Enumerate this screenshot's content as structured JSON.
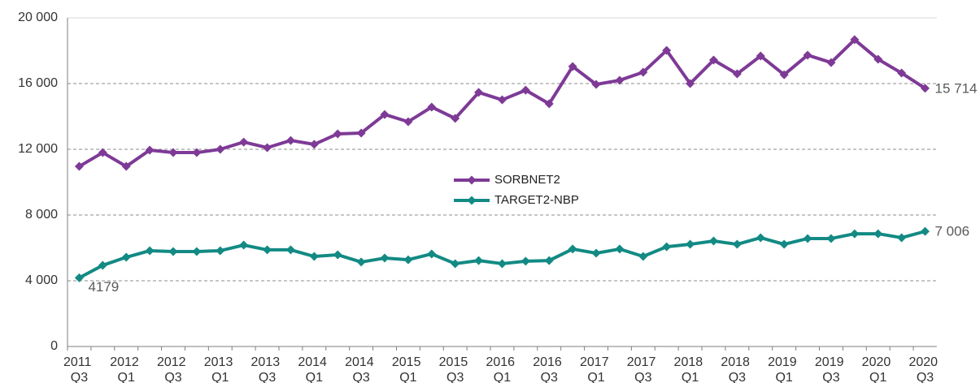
{
  "chart_data": {
    "type": "line",
    "categories": [
      "2011 Q3",
      null,
      "2012 Q1",
      null,
      "2012 Q3",
      null,
      "2013 Q1",
      null,
      "2013 Q3",
      null,
      "2014 Q1",
      null,
      "2014 Q3",
      null,
      "2015 Q1",
      null,
      "2015 Q3",
      null,
      "2016 Q1",
      null,
      "2016 Q3",
      null,
      "2017 Q1",
      null,
      "2017 Q3",
      null,
      "2018 Q1",
      null,
      "2018 Q3",
      null,
      "2019 Q1",
      null,
      "2019 Q3",
      null,
      "2020 Q1",
      null,
      "2020 Q3"
    ],
    "series": [
      {
        "name": "SORBNET2",
        "color": "#7e3a96",
        "values": [
          10960,
          11800,
          10960,
          11950,
          11800,
          11800,
          12000,
          12440,
          12100,
          12540,
          12300,
          12940,
          12990,
          14120,
          13680,
          14570,
          13880,
          15460,
          15010,
          15600,
          14770,
          17040,
          15950,
          16200,
          16690,
          18020,
          16000,
          17430,
          16590,
          17680,
          16540,
          17730,
          17280,
          18670,
          17480,
          16640,
          15714
        ],
        "value_labels": [
          null,
          null,
          null,
          null,
          null,
          null,
          null,
          null,
          null,
          null,
          null,
          null,
          null,
          null,
          null,
          null,
          null,
          null,
          null,
          null,
          null,
          null,
          null,
          null,
          null,
          null,
          null,
          null,
          null,
          null,
          null,
          null,
          null,
          null,
          null,
          null,
          "15 714"
        ]
      },
      {
        "name": "TARGET2-NBP",
        "color": "#138a84",
        "values": [
          4179,
          4940,
          5430,
          5830,
          5780,
          5780,
          5830,
          6170,
          5880,
          5880,
          5480,
          5580,
          5140,
          5380,
          5280,
          5630,
          5040,
          5230,
          5040,
          5190,
          5230,
          5930,
          5680,
          5930,
          5480,
          6070,
          6220,
          6420,
          6220,
          6620,
          6220,
          6570,
          6570,
          6860,
          6860,
          6620,
          7006
        ],
        "value_labels": [
          "4179",
          null,
          null,
          null,
          null,
          null,
          null,
          null,
          null,
          null,
          null,
          null,
          null,
          null,
          null,
          null,
          null,
          null,
          null,
          null,
          null,
          null,
          null,
          null,
          null,
          null,
          null,
          null,
          null,
          null,
          null,
          null,
          null,
          null,
          null,
          null,
          "7 006"
        ]
      }
    ],
    "ylim": [
      0,
      20000
    ],
    "yticks": [
      0,
      {
        "value": 4000,
        "label": "4 000"
      },
      {
        "value": 8000,
        "label": "8 000"
      },
      {
        "value": 12000,
        "label": "12 000"
      },
      {
        "value": 16000,
        "label": "16 000"
      },
      {
        "value": 20000,
        "label": "20 000"
      }
    ],
    "grid": true
  }
}
